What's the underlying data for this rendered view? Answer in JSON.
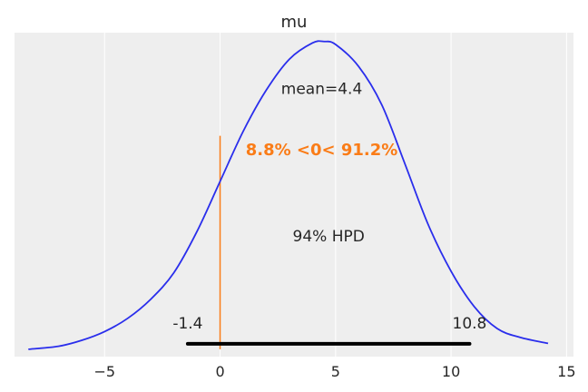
{
  "chart_data": {
    "type": "area",
    "title": "mu",
    "xlabel": "",
    "ylabel": "",
    "xlim": [
      -8.9,
      15.3
    ],
    "ylim": [
      -0.005,
      0.215
    ],
    "grid": "vertical",
    "x_ticks": [
      -5,
      0,
      5,
      10,
      15
    ],
    "x_tick_labels": [
      "−5",
      "0",
      "5",
      "10",
      "15"
    ],
    "density": {
      "x": [
        -8.3,
        -7.0,
        -6.0,
        -5.0,
        -4.0,
        -3.0,
        -2.0,
        -1.0,
        0.0,
        1.0,
        2.0,
        3.0,
        4.0,
        4.5,
        5.0,
        6.0,
        7.0,
        8.0,
        9.0,
        10.0,
        11.0,
        12.0,
        13.0,
        14.2
      ],
      "y": [
        0.0,
        0.002,
        0.006,
        0.012,
        0.021,
        0.034,
        0.052,
        0.08,
        0.114,
        0.148,
        0.176,
        0.197,
        0.208,
        0.209,
        0.207,
        0.192,
        0.166,
        0.126,
        0.085,
        0.053,
        0.029,
        0.014,
        0.008,
        0.004
      ],
      "color": "#2a2eec"
    },
    "mean_label": "mean=4.4",
    "ref_val": {
      "x": 0,
      "line_top_y": 0.145,
      "label": "8.8% <0< 91.2%",
      "color": "#fa7c17"
    },
    "hpd": {
      "label": "94% HPD",
      "low": -1.4,
      "high": 10.8,
      "low_label": "-1.4",
      "high_label": "10.8",
      "color": "#000000"
    },
    "axes_background": "#eeeeee"
  }
}
